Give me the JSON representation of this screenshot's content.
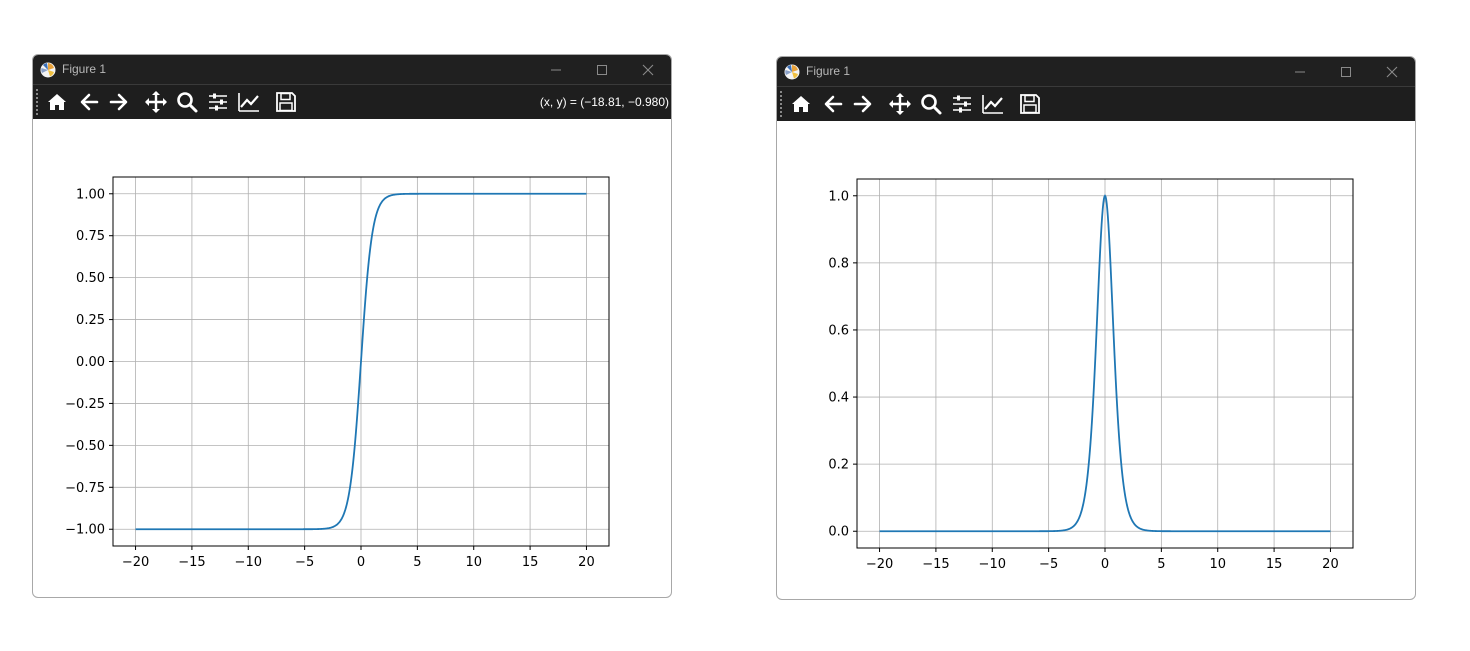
{
  "windows": [
    {
      "title": "Figure 1",
      "coords_readout": "(x, y) = (−18.81, −0.980)",
      "toolbar": {
        "icons": [
          "home-icon",
          "back-arrow-icon",
          "forward-arrow-icon",
          "pan-move-icon",
          "zoom-magnifier-icon",
          "configure-subplots-icon",
          "edit-axes-line-icon",
          "save-floppy-icon"
        ]
      },
      "chart_data": {
        "type": "line",
        "function": "tanh(x)",
        "x_range": [
          -20,
          20
        ],
        "xlim": [
          -22,
          22
        ],
        "ylim": [
          -1.1,
          1.1
        ],
        "xticks": [
          -20,
          -15,
          -10,
          -5,
          0,
          5,
          10,
          15,
          20
        ],
        "xtick_labels": [
          "−20",
          "−15",
          "−10",
          "−5",
          "0",
          "5",
          "10",
          "15",
          "20"
        ],
        "yticks": [
          1.0,
          0.75,
          0.5,
          0.25,
          0.0,
          -0.25,
          -0.5,
          -0.75,
          -1.0
        ],
        "ytick_labels": [
          "1.00",
          "0.75",
          "0.50",
          "0.25",
          "0.00",
          "−0.25",
          "−0.50",
          "−0.75",
          "−1.00"
        ],
        "grid": true,
        "line_color": "#1f77b4"
      }
    },
    {
      "title": "Figure 1",
      "coords_readout": "",
      "toolbar": {
        "icons": [
          "home-icon",
          "back-arrow-icon",
          "forward-arrow-icon",
          "pan-move-icon",
          "zoom-magnifier-icon",
          "configure-subplots-icon",
          "edit-axes-line-icon",
          "save-floppy-icon"
        ]
      },
      "chart_data": {
        "type": "line",
        "function": "1 - tanh(x)^2",
        "x_range": [
          -20,
          20
        ],
        "xlim": [
          -22,
          22
        ],
        "ylim": [
          -0.05,
          1.05
        ],
        "xticks": [
          -20,
          -15,
          -10,
          -5,
          0,
          5,
          10,
          15,
          20
        ],
        "xtick_labels": [
          "−20",
          "−15",
          "−10",
          "−5",
          "0",
          "5",
          "10",
          "15",
          "20"
        ],
        "yticks": [
          1.0,
          0.8,
          0.6,
          0.4,
          0.2,
          0.0
        ],
        "ytick_labels": [
          "1.0",
          "0.8",
          "0.6",
          "0.4",
          "0.2",
          "0.0"
        ],
        "grid": true,
        "line_color": "#1f77b4"
      }
    }
  ]
}
